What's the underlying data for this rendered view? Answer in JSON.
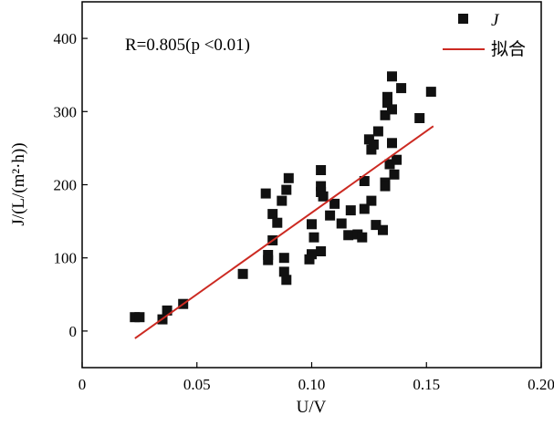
{
  "chart_data": {
    "type": "scatter",
    "xlabel": "U/V",
    "ylabel": "J/(L/(m²·h))",
    "xlim": [
      0,
      0.2
    ],
    "ylim": [
      -50,
      450
    ],
    "xticks": [
      0,
      0.05,
      0.1,
      0.15,
      0.2
    ],
    "xtick_labels": [
      "0",
      "0.05",
      "0.10",
      "0.15",
      "0.20"
    ],
    "yticks": [
      0,
      100,
      200,
      300,
      400
    ],
    "ytick_labels": [
      "0",
      "100",
      "200",
      "300",
      "400"
    ],
    "grid": false,
    "legend_position": "top-right",
    "annotation": "R=0.805(p <0.01)",
    "series": [
      {
        "name": "J",
        "kind": "scatter",
        "marker": "square",
        "color": "#111111",
        "points": [
          [
            0.023,
            19
          ],
          [
            0.025,
            19
          ],
          [
            0.035,
            16
          ],
          [
            0.037,
            28
          ],
          [
            0.044,
            37
          ],
          [
            0.07,
            78
          ],
          [
            0.08,
            188
          ],
          [
            0.081,
            104
          ],
          [
            0.081,
            97
          ],
          [
            0.083,
            160
          ],
          [
            0.083,
            124
          ],
          [
            0.085,
            148
          ],
          [
            0.087,
            178
          ],
          [
            0.088,
            100
          ],
          [
            0.088,
            81
          ],
          [
            0.089,
            193
          ],
          [
            0.089,
            70
          ],
          [
            0.09,
            209
          ],
          [
            0.099,
            98
          ],
          [
            0.1,
            146
          ],
          [
            0.1,
            105
          ],
          [
            0.101,
            128
          ],
          [
            0.104,
            220
          ],
          [
            0.104,
            198
          ],
          [
            0.104,
            190
          ],
          [
            0.104,
            109
          ],
          [
            0.105,
            184
          ],
          [
            0.108,
            158
          ],
          [
            0.11,
            174
          ],
          [
            0.113,
            147
          ],
          [
            0.116,
            131
          ],
          [
            0.117,
            165
          ],
          [
            0.12,
            132
          ],
          [
            0.122,
            128
          ],
          [
            0.123,
            167
          ],
          [
            0.123,
            205
          ],
          [
            0.125,
            262
          ],
          [
            0.126,
            248
          ],
          [
            0.126,
            178
          ],
          [
            0.127,
            255
          ],
          [
            0.128,
            145
          ],
          [
            0.129,
            273
          ],
          [
            0.131,
            138
          ],
          [
            0.132,
            295
          ],
          [
            0.132,
            203
          ],
          [
            0.132,
            198
          ],
          [
            0.133,
            320
          ],
          [
            0.133,
            312
          ],
          [
            0.134,
            228
          ],
          [
            0.135,
            348
          ],
          [
            0.135,
            303
          ],
          [
            0.135,
            257
          ],
          [
            0.136,
            214
          ],
          [
            0.137,
            234
          ],
          [
            0.139,
            332
          ],
          [
            0.147,
            291
          ],
          [
            0.152,
            327
          ]
        ]
      },
      {
        "name": "拟合",
        "kind": "line",
        "color": "#cc2a22",
        "points": [
          [
            0.023,
            -10
          ],
          [
            0.153,
            280
          ]
        ]
      }
    ]
  }
}
